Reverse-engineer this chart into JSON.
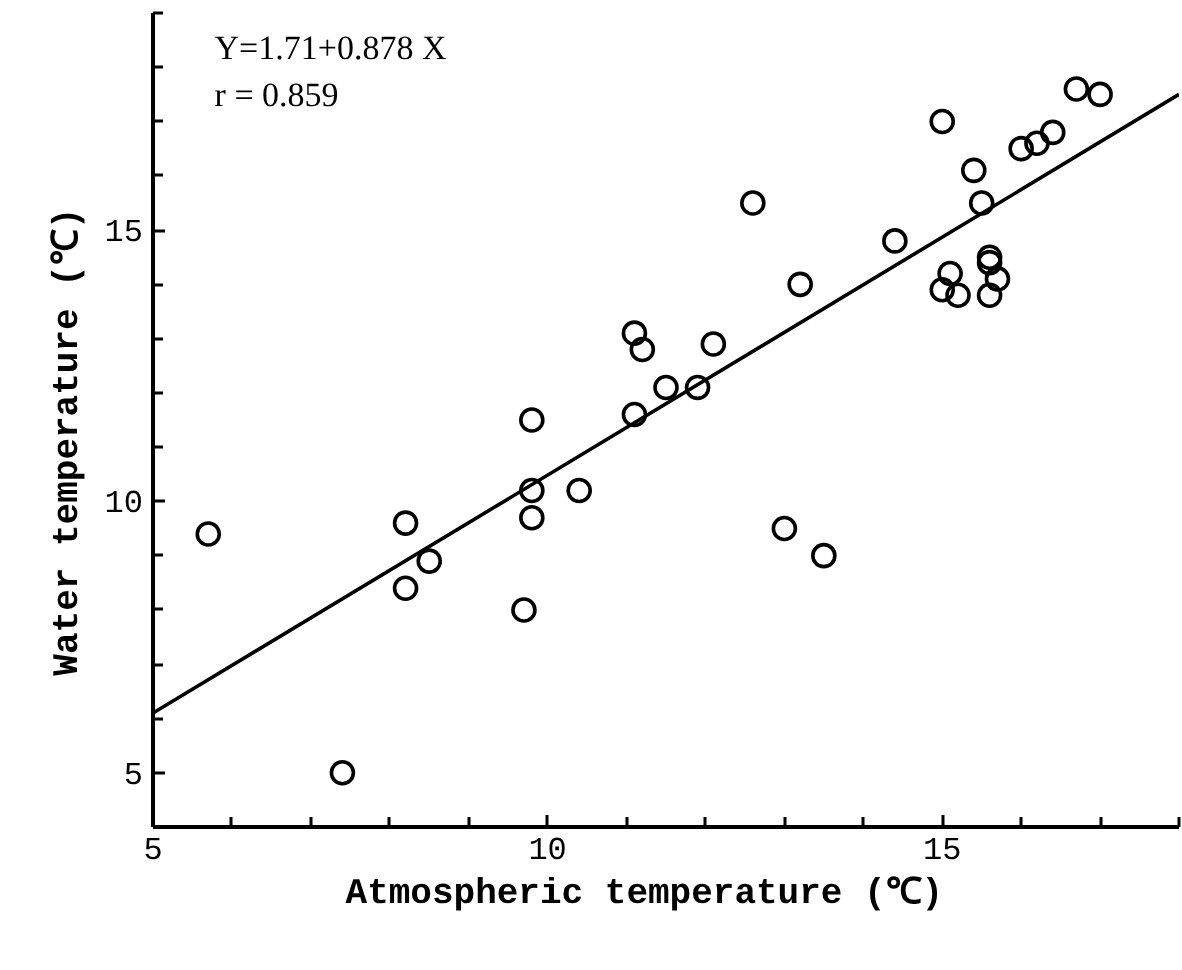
{
  "chart_data": {
    "type": "scatter",
    "xlabel": "Atmospheric temperature   (℃)",
    "ylabel": "Water temperature   (℃)",
    "annotations": [
      "Y=1.71+0.878 X",
      "r = 0.859"
    ],
    "xlim": [
      5,
      18
    ],
    "ylim": [
      4,
      19
    ],
    "xticks": [
      5,
      {
        "value": 6,
        "label": null
      },
      {
        "value": 7,
        "label": null
      },
      {
        "value": 8,
        "label": null
      },
      {
        "value": 9,
        "label": null
      },
      10,
      {
        "value": 11,
        "label": null
      },
      {
        "value": 12,
        "label": null
      },
      {
        "value": 13,
        "label": null
      },
      {
        "value": 14,
        "label": null
      },
      15,
      {
        "value": 16,
        "label": null
      },
      {
        "value": 17,
        "label": null
      },
      {
        "value": 18,
        "label": null
      }
    ],
    "yticks": [
      {
        "value": 4,
        "label": null
      },
      5,
      {
        "value": 6,
        "label": null
      },
      {
        "value": 7,
        "label": null
      },
      {
        "value": 8,
        "label": null
      },
      {
        "value": 9,
        "label": null
      },
      10,
      {
        "value": 11,
        "label": null
      },
      {
        "value": 12,
        "label": null
      },
      {
        "value": 13,
        "label": null
      },
      {
        "value": 14,
        "label": null
      },
      15,
      {
        "value": 16,
        "label": null
      },
      {
        "value": 17,
        "label": null
      },
      {
        "value": 18,
        "label": null
      },
      {
        "value": 19,
        "label": null
      }
    ],
    "grid": false,
    "series": [
      {
        "color": "#000000",
        "marker": "circle",
        "x": [
          5.7,
          7.4,
          8.2,
          8.2,
          8.5,
          9.7,
          9.8,
          9.8,
          9.8,
          10.4,
          11.1,
          11.2,
          11.1,
          11.5,
          11.9,
          12.1,
          12.6,
          13.0,
          13.2,
          13.5,
          14.4,
          15.0,
          15.1,
          15.0,
          15.2,
          15.4,
          15.5,
          15.6,
          15.6,
          15.7,
          15.6,
          16.0,
          16.2,
          16.4,
          16.7,
          17.0
        ],
        "values": [
          9.4,
          5.0,
          9.6,
          8.4,
          8.9,
          8.0,
          9.7,
          10.2,
          11.5,
          10.2,
          13.1,
          12.8,
          11.6,
          12.1,
          12.1,
          12.9,
          15.5,
          9.5,
          14.0,
          9.0,
          14.8,
          17.0,
          14.2,
          13.9,
          13.8,
          16.1,
          15.5,
          14.5,
          14.4,
          14.1,
          13.8,
          16.5,
          16.6,
          16.8,
          17.6,
          17.5
        ]
      },
      {
        "type": "line",
        "color": "#000000",
        "x": [
          5,
          18
        ],
        "values": [
          6.1,
          17.5
        ],
        "marker": "none"
      }
    ]
  }
}
